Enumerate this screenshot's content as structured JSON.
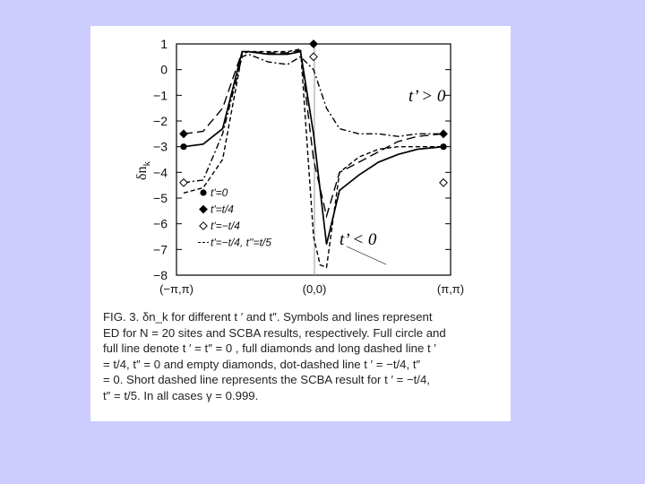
{
  "chart_data": {
    "type": "line",
    "ylabel": "δn_k",
    "ylim": [
      -8,
      1
    ],
    "y_ticks": [
      "1",
      "0",
      "−1",
      "−2",
      "−3",
      "−4",
      "−5",
      "−6",
      "−7",
      "−8"
    ],
    "x_ticks": [
      "(−π,π)",
      "(0,0)",
      "(π,π)"
    ],
    "legend": [
      {
        "marker": "filled-circle",
        "label": "t'=0"
      },
      {
        "marker": "filled-diamond",
        "label": "t'=t/4"
      },
      {
        "marker": "empty-diamond",
        "label": "t'=−t/4"
      },
      {
        "marker": "short-dash",
        "label": "t'=−t/4, t''=t/5"
      }
    ],
    "annotations": [
      "t’ > 0",
      "t’ < 0"
    ],
    "series": [
      {
        "style": "solid",
        "x": [
          0,
          0.15,
          0.3,
          0.45,
          0.5,
          0.65,
          0.8,
          0.9,
          1.0,
          1.1,
          1.2,
          1.35,
          1.5,
          1.65,
          1.8,
          2.0
        ],
        "y": [
          -3.0,
          -2.9,
          -2.3,
          0.7,
          0.7,
          0.6,
          0.6,
          0.7,
          -2.5,
          -6.8,
          -4.7,
          -4.1,
          -3.6,
          -3.3,
          -3.1,
          -3.0
        ]
      },
      {
        "style": "long-dash",
        "x": [
          0,
          0.15,
          0.3,
          0.45,
          0.5,
          0.65,
          0.8,
          0.9,
          1.0,
          1.1,
          1.2,
          1.35,
          1.5,
          1.65,
          1.8,
          2.0
        ],
        "y": [
          -2.5,
          -2.4,
          -1.5,
          0.7,
          0.7,
          0.65,
          0.65,
          0.75,
          -3.5,
          -5.7,
          -4.0,
          -3.6,
          -3.2,
          -2.8,
          -2.6,
          -2.5
        ]
      },
      {
        "style": "dot-dash",
        "x": [
          0,
          0.15,
          0.3,
          0.45,
          0.5,
          0.65,
          0.8,
          0.9,
          1.0,
          1.1,
          1.2,
          1.35,
          1.5,
          1.65,
          1.8,
          2.0
        ],
        "y": [
          -4.4,
          -4.3,
          -2.5,
          0.5,
          0.6,
          0.3,
          0.2,
          0.5,
          0.0,
          -1.5,
          -2.3,
          -2.5,
          -2.5,
          -2.6,
          -2.5,
          -2.5
        ]
      },
      {
        "style": "short-dash",
        "x": [
          0,
          0.15,
          0.3,
          0.45,
          0.5,
          0.65,
          0.8,
          0.9,
          1.0,
          1.05,
          1.1,
          1.2,
          1.35,
          1.5,
          1.65,
          1.8,
          2.0
        ],
        "y": [
          -4.8,
          -4.6,
          -3.5,
          0.6,
          0.7,
          0.7,
          0.7,
          0.8,
          -6.5,
          -7.6,
          -7.7,
          -4.0,
          -3.4,
          -3.1,
          -3.0,
          -3.0,
          -3.0
        ]
      }
    ],
    "points": [
      {
        "marker": "filled-circle",
        "x": [
          0,
          1,
          2
        ],
        "y": [
          -3.0,
          1.0,
          -3.0
        ]
      },
      {
        "marker": "filled-diamond",
        "x": [
          0,
          1,
          2
        ],
        "y": [
          -2.5,
          1.0,
          -2.5
        ]
      },
      {
        "marker": "empty-diamond",
        "x": [
          0,
          1,
          2
        ],
        "y": [
          -4.4,
          0.5,
          -4.4
        ]
      }
    ]
  },
  "caption": {
    "line1": "FIG. 3. δn_k for different t ′ and t″. Symbols and lines represent",
    "line2": "ED for N = 20 sites and SCBA results, respectively. Full circle and",
    "line3": "full line denote t ′ = t″ = 0 , full diamonds and long dashed line t ′",
    "line4": "= t/4, t″ = 0 and empty diamonds, dot-dashed line t ′ = −t/4, t″",
    "line5": "= 0. Short dashed line represents the SCBA result for t ′ = −t/4,",
    "line6": "t″ = t/5. In all cases γ = 0.999."
  }
}
